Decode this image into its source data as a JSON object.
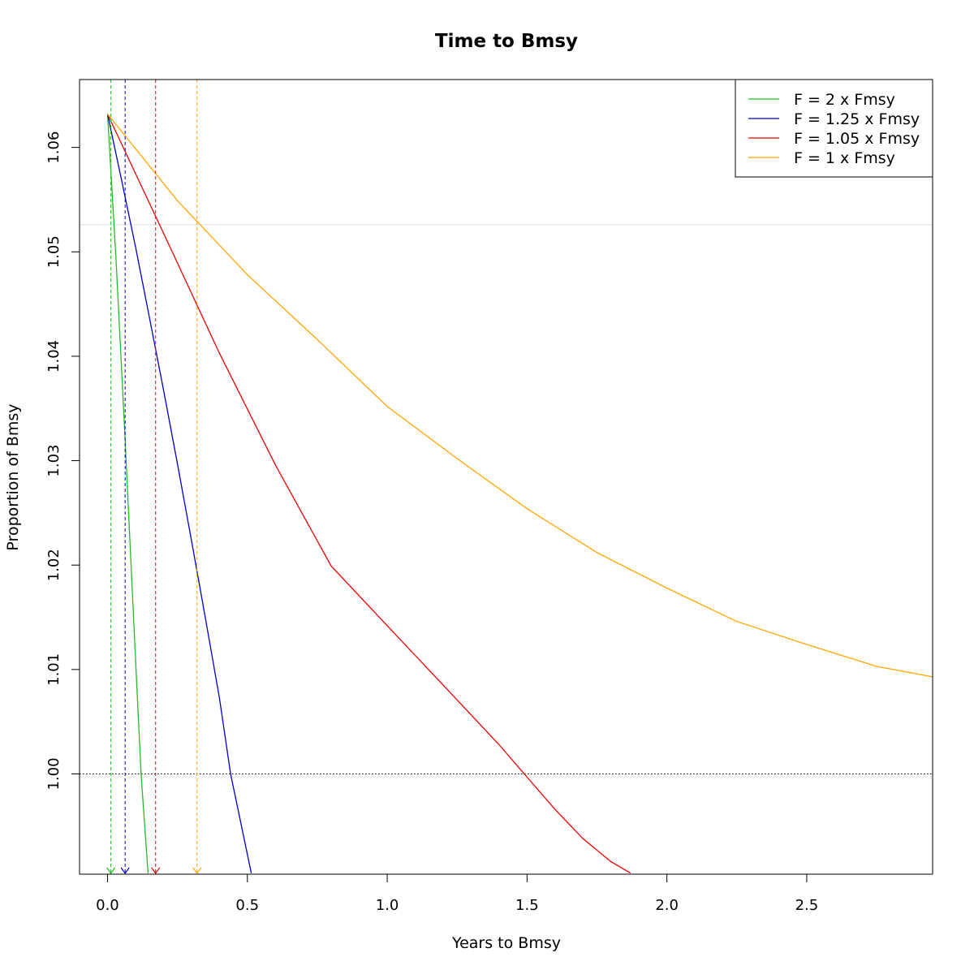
{
  "chart_data": {
    "type": "line",
    "title": "Time to Bmsy",
    "xlabel": "Years to Bmsy",
    "ylabel": "Proportion of Bmsy",
    "xlim": [
      -0.1,
      2.95
    ],
    "ylim": [
      0.9904,
      1.0665
    ],
    "x_ticks": [
      0.0,
      0.5,
      1.0,
      1.5,
      2.0,
      2.5
    ],
    "x_tick_labels": [
      "0.0",
      "0.5",
      "1.0",
      "1.5",
      "2.0",
      "2.5"
    ],
    "y_ticks": [
      1.0,
      1.01,
      1.02,
      1.03,
      1.04,
      1.05,
      1.06
    ],
    "y_tick_labels": [
      "1.00",
      "1.01",
      "1.02",
      "1.03",
      "1.04",
      "1.05",
      "1.06"
    ],
    "legend_position": "top-right",
    "reference_lines": {
      "horizontal_dotted": 1.0,
      "horizontal_light": 1.0526
    },
    "series": [
      {
        "name": "F = 2 x Fmsy",
        "color": "#22bb22",
        "marker_x": 0.012,
        "x": [
          0.0,
          0.03,
          0.06,
          0.09,
          0.12,
          0.145
        ],
        "y": [
          1.0632,
          1.0495,
          1.0337,
          1.0167,
          1.0,
          0.9905
        ]
      },
      {
        "name": "F = 1.25 x Fmsy",
        "color": "#0000cc",
        "marker_x": 0.063,
        "x": [
          0.0,
          0.05,
          0.1,
          0.15,
          0.2,
          0.25,
          0.3,
          0.35,
          0.4,
          0.44,
          0.514
        ],
        "y": [
          1.0632,
          1.0569,
          1.0505,
          1.0437,
          1.0368,
          1.0297,
          1.0224,
          1.0149,
          1.0073,
          1.0,
          0.9905
        ]
      },
      {
        "name": "F = 1.05 x Fmsy",
        "color": "#ee0000",
        "marker_x": 0.172,
        "x": [
          0.0,
          0.2,
          0.4,
          0.6,
          0.8,
          1.0,
          1.2,
          1.4,
          1.49,
          1.6,
          1.7,
          1.8,
          1.87
        ],
        "y": [
          1.0632,
          1.0518,
          1.0403,
          1.0296,
          1.0199,
          1.0142,
          1.0085,
          1.0028,
          1.0,
          0.9966,
          0.9938,
          0.9916,
          0.9905
        ]
      },
      {
        "name": "F = 1 x Fmsy",
        "color": "#ffa500",
        "marker_x": 0.32,
        "x": [
          0.0,
          0.25,
          0.5,
          0.75,
          1.0,
          1.25,
          1.5,
          1.75,
          2.0,
          2.25,
          2.5,
          2.75,
          2.95
        ],
        "y": [
          1.0632,
          1.0549,
          1.0478,
          1.0416,
          1.0352,
          1.0302,
          1.0254,
          1.0212,
          1.0178,
          1.0146,
          1.0124,
          1.0103,
          1.0093
        ]
      }
    ]
  }
}
